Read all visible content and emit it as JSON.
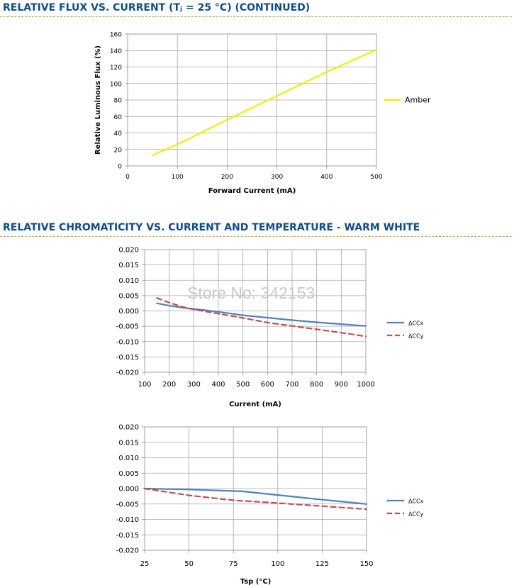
{
  "sections": [
    {
      "title": "RELATIVE FLUX VS. CURRENT (Tⱼ = 25 °C) (CONTINUED)"
    },
    {
      "title": "RELATIVE CHROMATICITY VS. CURRENT AND TEMPERATURE - WARM WHITE"
    }
  ],
  "watermark": "Store No: 342153",
  "chart_data": [
    {
      "type": "line",
      "title": "",
      "xlabel": "Forward Current (mA)",
      "ylabel": "Relative Luminous Flux (%)",
      "xlim": [
        0,
        500
      ],
      "ylim": [
        0,
        160
      ],
      "xticks": [
        "0",
        "100",
        "200",
        "300",
        "400",
        "500"
      ],
      "yticks": [
        "0",
        "20",
        "40",
        "60",
        "80",
        "100",
        "120",
        "140",
        "160"
      ],
      "grid": true,
      "legend": "right",
      "series": [
        {
          "name": "Amber",
          "color": "#f0f000",
          "dash": false,
          "x": [
            50,
            100,
            200,
            300,
            400,
            500
          ],
          "y": [
            13,
            26,
            56,
            85,
            114,
            141
          ]
        }
      ]
    },
    {
      "type": "line",
      "title": "",
      "xlabel": "Current (mA)",
      "ylabel": "",
      "xlim": [
        100,
        1000
      ],
      "ylim": [
        -0.02,
        0.02
      ],
      "xticks": [
        "100",
        "200",
        "300",
        "400",
        "500",
        "600",
        "700",
        "800",
        "900",
        "1000"
      ],
      "yticks": [
        "-0.020",
        "-0.015",
        "-0.010",
        "-0.005",
        "0.000",
        "0.005",
        "0.010",
        "0.015",
        "0.020"
      ],
      "grid": true,
      "legend": "right",
      "series": [
        {
          "name": "ΔCCx",
          "color": "#4f81bd",
          "dash": false,
          "x": [
            150,
            200,
            250,
            300,
            350,
            400,
            500,
            600,
            700,
            800,
            900,
            1000
          ],
          "y": [
            0.0025,
            0.0017,
            0.0011,
            0.0006,
            0.0002,
            -0.0003,
            -0.0014,
            -0.0022,
            -0.003,
            -0.0037,
            -0.0043,
            -0.0049
          ]
        },
        {
          "name": "ΔCCy",
          "color": "#c0504d",
          "dash": true,
          "x": [
            150,
            200,
            250,
            300,
            350,
            400,
            500,
            600,
            700,
            800,
            900,
            1000
          ],
          "y": [
            0.0042,
            0.0027,
            0.0014,
            0.0005,
            -0.0002,
            -0.0009,
            -0.0023,
            -0.0038,
            -0.0049,
            -0.006,
            -0.0071,
            -0.0083
          ]
        }
      ]
    },
    {
      "type": "line",
      "title": "",
      "xlabel": "Tsp (°C)",
      "ylabel": "",
      "xlim": [
        25,
        150
      ],
      "ylim": [
        -0.02,
        0.02
      ],
      "xticks": [
        "25",
        "50",
        "75",
        "100",
        "125",
        "150"
      ],
      "yticks": [
        "-0.020",
        "-0.015",
        "-0.010",
        "-0.005",
        "0.000",
        "0.005",
        "0.010",
        "0.015",
        "0.020"
      ],
      "grid": true,
      "legend": "right",
      "series": [
        {
          "name": "ΔCCx",
          "color": "#4f81bd",
          "dash": false,
          "x": [
            25,
            50,
            80,
            100,
            125,
            150
          ],
          "y": [
            0.0,
            -0.0003,
            -0.0009,
            -0.0021,
            -0.0036,
            -0.005
          ]
        },
        {
          "name": "ΔCCy",
          "color": "#c0504d",
          "dash": true,
          "x": [
            25,
            50,
            75,
            100,
            125,
            150
          ],
          "y": [
            0.0,
            -0.0022,
            -0.0038,
            -0.0047,
            -0.0057,
            -0.0067
          ]
        }
      ]
    }
  ]
}
